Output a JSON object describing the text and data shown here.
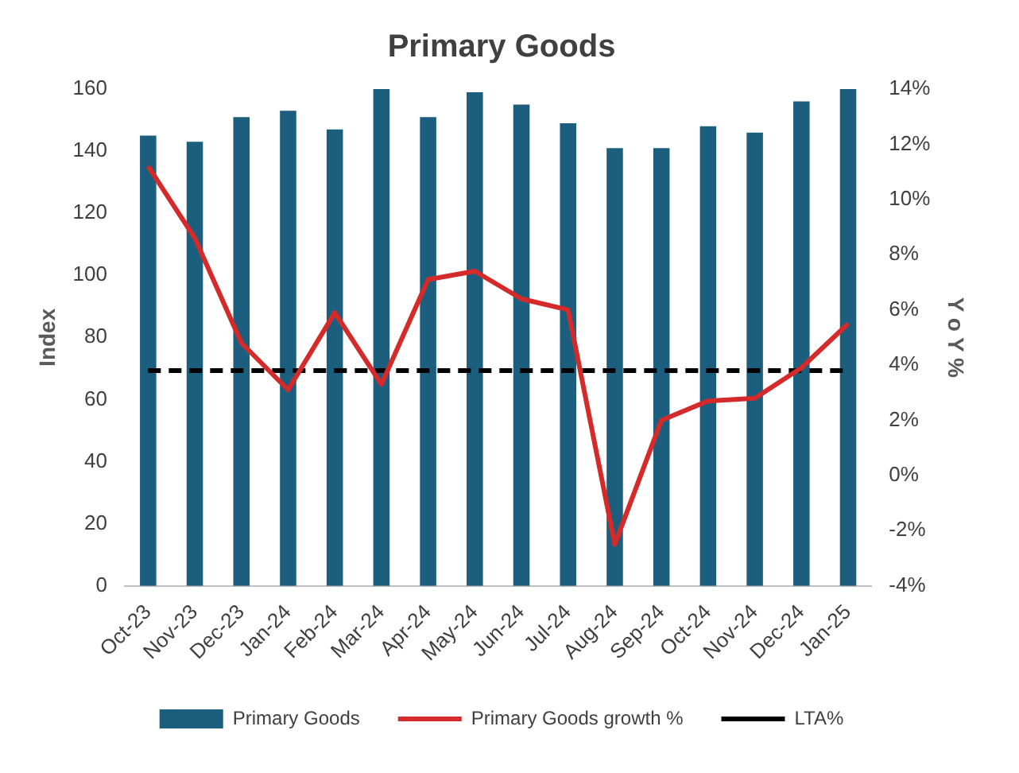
{
  "chart_data": {
    "type": "bar",
    "title": "Primary Goods",
    "ylabel": "Index",
    "y2label": "Y o Y %",
    "categories": [
      "Oct-23",
      "Nov-23",
      "Dec-23",
      "Jan-24",
      "Feb-24",
      "Mar-24",
      "Apr-24",
      "May-24",
      "Jun-24",
      "Jul-24",
      "Aug-24",
      "Sep-24",
      "Oct-24",
      "Nov-24",
      "Dec-24",
      "Jan-25"
    ],
    "series": [
      {
        "name": "Primary Goods",
        "color": "#1b5e7e",
        "values": [
          145,
          143,
          151,
          153,
          147,
          160,
          151,
          159,
          155,
          149,
          141,
          141,
          148,
          146,
          156,
          160
        ]
      },
      {
        "name": "Primary Goods growth %",
        "type": "line",
        "axis": "y2",
        "color": "#d42a2a",
        "line_style": "solid",
        "values": [
          11.2,
          8.6,
          4.8,
          3.1,
          5.9,
          3.3,
          7.1,
          7.4,
          6.4,
          6.0,
          -2.5,
          2.0,
          2.7,
          2.8,
          3.9,
          5.5
        ]
      },
      {
        "name": "LTA%",
        "type": "line",
        "axis": "y2",
        "color": "#000000",
        "line_style": "dashed",
        "values": [
          3.8,
          3.8,
          3.8,
          3.8,
          3.8,
          3.8,
          3.8,
          3.8,
          3.8,
          3.8,
          3.8,
          3.8,
          3.8,
          3.8,
          3.8,
          3.8
        ]
      }
    ],
    "ylim": [
      0,
      160
    ],
    "yticks": [
      0,
      20,
      40,
      60,
      80,
      100,
      120,
      140,
      160
    ],
    "y2lim": [
      -4,
      14
    ],
    "y2ticks": [
      {
        "value": -4,
        "label": "-4%"
      },
      {
        "value": -2,
        "label": "-2%"
      },
      {
        "value": 0,
        "label": "0%"
      },
      {
        "value": 2,
        "label": "2%"
      },
      {
        "value": 4,
        "label": "4%"
      },
      {
        "value": 6,
        "label": "6%"
      },
      {
        "value": 8,
        "label": "8%"
      },
      {
        "value": 10,
        "label": "10%"
      },
      {
        "value": 12,
        "label": "12%"
      },
      {
        "value": 14,
        "label": "14%"
      }
    ],
    "grid": false,
    "legend": "bottom",
    "marker": "none"
  }
}
